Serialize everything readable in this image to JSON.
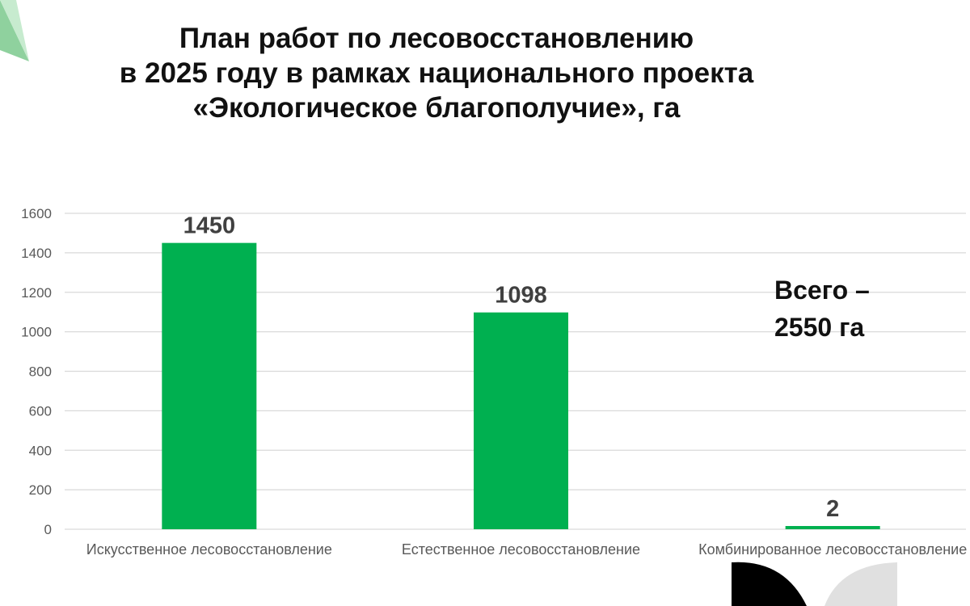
{
  "title_lines": [
    "План работ по лесовосстановлению",
    "в 2025 году в рамках национального проекта",
    "«Экологическое благополучие», га"
  ],
  "total_note_lines": [
    "Всего –",
    "2550 га"
  ],
  "colors": {
    "bar": "#00b050",
    "grid": "#d9d9d9",
    "tick_text": "#595959",
    "label_text": "#404040",
    "decor_green": "#8fd19e",
    "decor_black": "#000000",
    "decor_gray": "#e0e0e0"
  },
  "chart_data": {
    "type": "bar",
    "title": "План работ по лесовосстановлению в 2025 году в рамках национального проекта «Экологическое благополучие», га",
    "categories": [
      "Искусственное лесовосстановление",
      "Естественное лесовосстановление",
      "Комбинированное лесовосстановление"
    ],
    "values": [
      1450,
      1098,
      2
    ],
    "data_labels": [
      "1450",
      "1098",
      "2"
    ],
    "ylim": [
      0,
      1600
    ],
    "yticks": [
      0,
      200,
      400,
      600,
      800,
      1000,
      1200,
      1400,
      1600
    ],
    "grid": true,
    "xlabel": "",
    "ylabel": ""
  }
}
